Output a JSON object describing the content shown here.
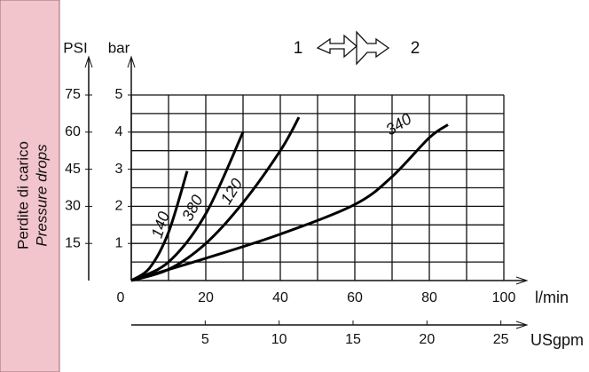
{
  "chart_data": {
    "type": "line",
    "side_title": "Perdite di carico",
    "side_subtitle": "Pressure drops",
    "legend_left": "1",
    "legend_right": "2",
    "y_label": "bar",
    "y2_label": "PSI",
    "x_label": "l/min",
    "x2_label": "USgpm",
    "xlim": [
      0,
      100
    ],
    "xticks": [
      0,
      20,
      40,
      60,
      80,
      100
    ],
    "x_minor_ticks": [
      10,
      30,
      50,
      70,
      90
    ],
    "ylim": [
      0,
      5
    ],
    "yticks": [
      1,
      2,
      3,
      4,
      5
    ],
    "y_minor_ticks": [
      0.5,
      1.5,
      2.5,
      3.5,
      4.5
    ],
    "y2lim": [
      0,
      75
    ],
    "y2ticks": [
      15,
      30,
      45,
      60,
      75
    ],
    "x2lim": [
      0,
      25.2
    ],
    "x2ticks": [
      5,
      10,
      15,
      20,
      25
    ],
    "grid": true,
    "series": [
      {
        "name": "140",
        "color": "#000000",
        "x": [
          0,
          5,
          10,
          15
        ],
        "values": [
          0,
          0.35,
          1.3,
          2.95
        ]
      },
      {
        "name": "380",
        "color": "#000000",
        "x": [
          0,
          10,
          20,
          30
        ],
        "values": [
          0,
          0.5,
          1.8,
          4.0
        ]
      },
      {
        "name": "120",
        "color": "#000000",
        "x": [
          0,
          10,
          20,
          30,
          40,
          45
        ],
        "values": [
          0,
          0.3,
          1.0,
          2.1,
          3.5,
          4.4
        ]
      },
      {
        "name": "340",
        "color": "#000000",
        "x": [
          0,
          20,
          40,
          60,
          70,
          80,
          85
        ],
        "values": [
          0,
          0.6,
          1.25,
          2.05,
          2.8,
          3.85,
          4.2
        ]
      }
    ]
  }
}
